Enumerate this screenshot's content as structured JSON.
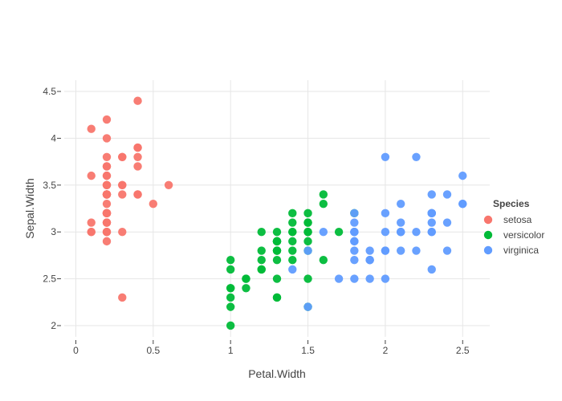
{
  "chart_data": {
    "type": "scatter",
    "title": "",
    "xlabel": "Petal.Width",
    "ylabel": "Sepal.Width",
    "xlim": [
      -0.075,
      2.675
    ],
    "ylim": [
      1.88,
      4.62
    ],
    "x_ticks": [
      0,
      0.5,
      1,
      1.5,
      2,
      2.5
    ],
    "x_tick_labels": [
      "0",
      "0.5",
      "1",
      "1.5",
      "2",
      "2.5"
    ],
    "y_ticks": [
      2,
      2.5,
      3,
      3.5,
      4,
      4.5
    ],
    "y_tick_labels": [
      "2",
      "2.5",
      "3",
      "3.5",
      "4",
      "4.5"
    ],
    "grid": true,
    "legend": {
      "title": "Species",
      "placement": "right"
    },
    "series": [
      {
        "name": "setosa",
        "color": "#F8766D",
        "points": [
          [
            0.2,
            3.5
          ],
          [
            0.2,
            3.0
          ],
          [
            0.2,
            3.2
          ],
          [
            0.2,
            3.1
          ],
          [
            0.2,
            3.6
          ],
          [
            0.4,
            3.9
          ],
          [
            0.3,
            3.4
          ],
          [
            0.2,
            3.4
          ],
          [
            0.2,
            2.9
          ],
          [
            0.1,
            3.1
          ],
          [
            0.2,
            3.7
          ],
          [
            0.2,
            3.4
          ],
          [
            0.1,
            3.0
          ],
          [
            0.1,
            3.0
          ],
          [
            0.2,
            4.0
          ],
          [
            0.4,
            4.4
          ],
          [
            0.4,
            3.9
          ],
          [
            0.3,
            3.5
          ],
          [
            0.3,
            3.8
          ],
          [
            0.3,
            3.8
          ],
          [
            0.2,
            3.4
          ],
          [
            0.4,
            3.7
          ],
          [
            0.2,
            3.6
          ],
          [
            0.5,
            3.3
          ],
          [
            0.2,
            3.4
          ],
          [
            0.2,
            3.0
          ],
          [
            0.4,
            3.4
          ],
          [
            0.2,
            3.5
          ],
          [
            0.2,
            3.4
          ],
          [
            0.2,
            3.2
          ],
          [
            0.2,
            3.1
          ],
          [
            0.4,
            3.4
          ],
          [
            0.1,
            4.1
          ],
          [
            0.2,
            4.2
          ],
          [
            0.2,
            3.1
          ],
          [
            0.2,
            3.2
          ],
          [
            0.2,
            3.5
          ],
          [
            0.1,
            3.6
          ],
          [
            0.2,
            3.0
          ],
          [
            0.2,
            3.4
          ],
          [
            0.3,
            3.5
          ],
          [
            0.3,
            2.3
          ],
          [
            0.2,
            3.2
          ],
          [
            0.6,
            3.5
          ],
          [
            0.4,
            3.8
          ],
          [
            0.3,
            3.0
          ],
          [
            0.2,
            3.8
          ],
          [
            0.2,
            3.2
          ],
          [
            0.2,
            3.7
          ],
          [
            0.2,
            3.3
          ]
        ]
      },
      {
        "name": "versicolor",
        "color": "#00BA38",
        "points": [
          [
            1.4,
            3.2
          ],
          [
            1.5,
            3.2
          ],
          [
            1.5,
            3.1
          ],
          [
            1.3,
            2.3
          ],
          [
            1.5,
            2.8
          ],
          [
            1.3,
            2.8
          ],
          [
            1.6,
            3.3
          ],
          [
            1.0,
            2.4
          ],
          [
            1.3,
            2.9
          ],
          [
            1.4,
            2.7
          ],
          [
            1.0,
            2.0
          ],
          [
            1.5,
            3.0
          ],
          [
            1.0,
            2.2
          ],
          [
            1.4,
            2.9
          ],
          [
            1.3,
            2.9
          ],
          [
            1.4,
            3.1
          ],
          [
            1.5,
            3.0
          ],
          [
            1.0,
            2.7
          ],
          [
            1.5,
            2.2
          ],
          [
            1.1,
            2.5
          ],
          [
            1.8,
            3.2
          ],
          [
            1.3,
            2.8
          ],
          [
            1.5,
            2.5
          ],
          [
            1.2,
            2.8
          ],
          [
            1.3,
            2.9
          ],
          [
            1.4,
            3.0
          ],
          [
            1.4,
            2.8
          ],
          [
            1.7,
            3.0
          ],
          [
            1.5,
            2.9
          ],
          [
            1.0,
            2.6
          ],
          [
            1.1,
            2.4
          ],
          [
            1.0,
            2.4
          ],
          [
            1.2,
            2.7
          ],
          [
            1.6,
            2.7
          ],
          [
            1.5,
            3.0
          ],
          [
            1.6,
            3.4
          ],
          [
            1.5,
            3.1
          ],
          [
            1.3,
            2.3
          ],
          [
            1.3,
            3.0
          ],
          [
            1.3,
            2.5
          ],
          [
            1.2,
            2.6
          ],
          [
            1.4,
            3.0
          ],
          [
            1.2,
            2.6
          ],
          [
            1.0,
            2.3
          ],
          [
            1.3,
            2.7
          ],
          [
            1.2,
            3.0
          ],
          [
            1.3,
            2.9
          ],
          [
            1.3,
            2.9
          ],
          [
            1.1,
            2.5
          ],
          [
            1.3,
            2.8
          ]
        ]
      },
      {
        "name": "virginica",
        "color": "#619CFF",
        "points": [
          [
            2.5,
            3.3
          ],
          [
            1.9,
            2.7
          ],
          [
            2.1,
            3.0
          ],
          [
            1.8,
            2.9
          ],
          [
            2.2,
            3.0
          ],
          [
            2.1,
            3.0
          ],
          [
            1.7,
            2.5
          ],
          [
            1.8,
            2.9
          ],
          [
            1.8,
            2.5
          ],
          [
            2.5,
            3.6
          ],
          [
            2.0,
            3.2
          ],
          [
            1.9,
            2.7
          ],
          [
            2.1,
            3.0
          ],
          [
            2.0,
            2.5
          ],
          [
            2.4,
            2.8
          ],
          [
            2.3,
            3.2
          ],
          [
            1.8,
            3.0
          ],
          [
            2.2,
            3.8
          ],
          [
            2.3,
            2.6
          ],
          [
            1.5,
            2.2
          ],
          [
            2.3,
            3.2
          ],
          [
            2.0,
            2.8
          ],
          [
            2.0,
            2.8
          ],
          [
            1.8,
            2.7
          ],
          [
            2.1,
            3.3
          ],
          [
            1.8,
            3.2
          ],
          [
            1.8,
            2.8
          ],
          [
            1.8,
            3.0
          ],
          [
            2.1,
            2.8
          ],
          [
            1.6,
            3.0
          ],
          [
            1.9,
            2.8
          ],
          [
            2.0,
            3.8
          ],
          [
            2.2,
            2.8
          ],
          [
            1.5,
            2.8
          ],
          [
            1.4,
            2.6
          ],
          [
            2.3,
            3.0
          ],
          [
            2.4,
            3.4
          ],
          [
            1.8,
            3.1
          ],
          [
            1.8,
            3.0
          ],
          [
            2.1,
            3.1
          ],
          [
            2.4,
            3.1
          ],
          [
            2.3,
            3.1
          ],
          [
            1.9,
            2.7
          ],
          [
            2.3,
            3.2
          ],
          [
            2.5,
            3.3
          ],
          [
            2.3,
            3.0
          ],
          [
            1.9,
            2.5
          ],
          [
            2.0,
            3.0
          ],
          [
            2.3,
            3.4
          ],
          [
            1.8,
            3.0
          ]
        ]
      }
    ]
  }
}
